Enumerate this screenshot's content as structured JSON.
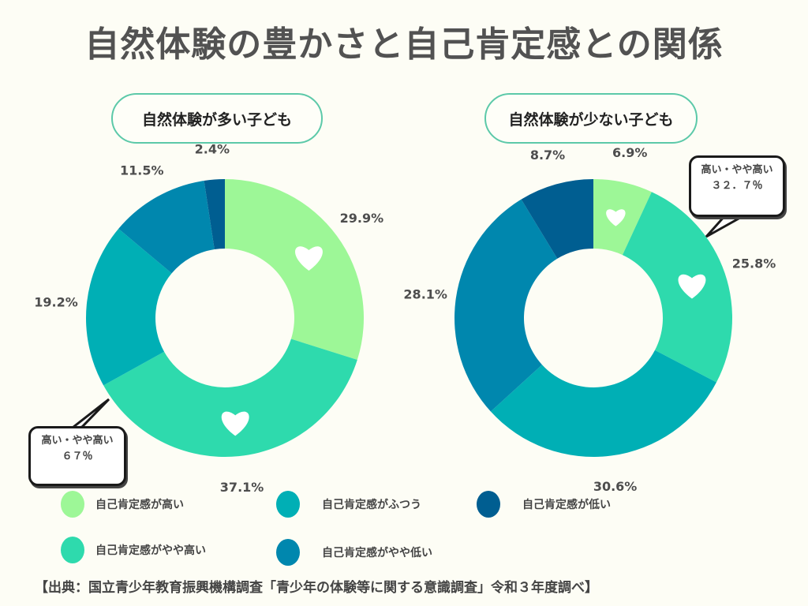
{
  "title": "自然体験の豊かさと自己肯定感との関係",
  "colors": {
    "background": "#fdfdf5",
    "high": "#9df797",
    "somewhat_high": "#2edaad",
    "normal": "#00afb5",
    "somewhat_low": "#0087ae",
    "low": "#005e91"
  },
  "legend": [
    {
      "label": "自己肯定感が高い",
      "color": "#9df797"
    },
    {
      "label": "自己肯定感がふつう",
      "color": "#00afb5"
    },
    {
      "label": "自己肯定感が低い",
      "color": "#005e91"
    },
    {
      "label": "自己肯定感がやや高い",
      "color": "#2edaad"
    },
    {
      "label": "自己肯定感がやや低い",
      "color": "#0087ae"
    }
  ],
  "callouts": {
    "left": {
      "line1": "高い・やや高い",
      "line2": "６７％"
    },
    "right": {
      "line1": "高い・やや高い",
      "line2": "３２．７％"
    }
  },
  "source": "【出典：国立青少年教育振興機構調査「青少年の体験等に関する意識調査」令和３年度調べ】",
  "chart_data": [
    {
      "type": "pie",
      "subtype": "donut",
      "title": "自然体験が多い子ども",
      "categories": [
        "自己肯定感が高い",
        "自己肯定感がやや高い",
        "自己肯定感がふつう",
        "自己肯定感がやや低い",
        "自己肯定感が低い"
      ],
      "values": [
        29.9,
        37.1,
        19.2,
        11.5,
        2.4
      ],
      "labels": [
        "29.9%",
        "37.1%",
        "19.2%",
        "11.5%",
        "2.4%"
      ],
      "colors": [
        "#9df797",
        "#2edaad",
        "#00afb5",
        "#0087ae",
        "#005e91"
      ],
      "heart_markers_on": [
        "自己肯定感が高い",
        "自己肯定感がやや高い"
      ],
      "start": "top",
      "direction": "clockwise"
    },
    {
      "type": "pie",
      "subtype": "donut",
      "title": "自然体験が少ない子ども",
      "categories": [
        "自己肯定感が高い",
        "自己肯定感がやや高い",
        "自己肯定感がふつう",
        "自己肯定感がやや低い",
        "自己肯定感が低い"
      ],
      "values": [
        6.9,
        25.8,
        30.6,
        28.1,
        8.7
      ],
      "labels": [
        "6.9%",
        "25.8%",
        "30.6%",
        "28.1%",
        "8.7%"
      ],
      "colors": [
        "#9df797",
        "#2edaad",
        "#00afb5",
        "#0087ae",
        "#005e91"
      ],
      "heart_markers_on": [
        "自己肯定感が高い",
        "自己肯定感がやや高い"
      ],
      "start": "top",
      "direction": "clockwise"
    }
  ]
}
